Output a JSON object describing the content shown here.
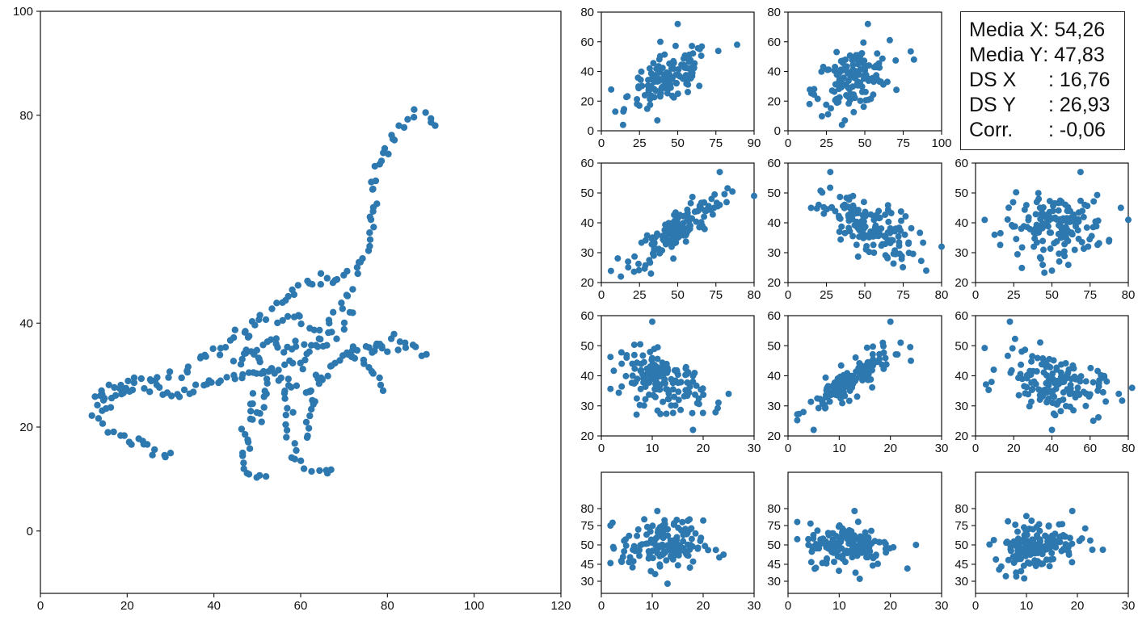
{
  "chart_data": [
    {
      "id": "dino",
      "type": "scatter",
      "title": "",
      "xlabel": "",
      "ylabel": "",
      "xlim": [
        0,
        120
      ],
      "ylim": [
        -12,
        100
      ],
      "xticks": [
        0,
        20,
        40,
        60,
        80,
        100,
        120
      ],
      "yticks": [
        0,
        20,
        40,
        80,
        100
      ],
      "ytick_positions": [
        0,
        20,
        40,
        80,
        100
      ],
      "marker_color": "#2e78b0",
      "outline": [
        [
          [
            14,
            25.5
          ],
          [
            16,
            24
          ],
          [
            13,
            22.5
          ],
          [
            15,
            20.5
          ],
          [
            17,
            19
          ],
          [
            20,
            17.5
          ],
          [
            23,
            16.8
          ],
          [
            27,
            15.8
          ],
          [
            30,
            15
          ]
        ],
        [
          [
            13,
            26
          ],
          [
            16,
            27
          ],
          [
            20,
            28.5
          ],
          [
            25,
            29
          ],
          [
            28,
            29.6
          ],
          [
            33,
            30
          ],
          [
            36,
            32.5
          ],
          [
            40,
            34.5
          ],
          [
            44,
            36.5
          ],
          [
            48,
            39.5
          ],
          [
            52,
            41.5
          ],
          [
            55,
            44
          ],
          [
            58,
            45.5
          ],
          [
            61,
            47.5
          ],
          [
            64,
            48
          ],
          [
            67,
            48.5
          ],
          [
            70,
            48.5
          ],
          [
            73,
            50.5
          ],
          [
            75,
            54
          ],
          [
            76,
            58
          ],
          [
            77,
            62
          ],
          [
            77,
            66
          ],
          [
            78,
            70
          ],
          [
            80,
            74
          ],
          [
            82,
            77
          ],
          [
            85,
            79
          ],
          [
            87,
            80.5
          ],
          [
            89,
            79.5
          ],
          [
            91,
            78
          ]
        ],
        [
          [
            14,
            25
          ],
          [
            18,
            26.5
          ],
          [
            22,
            27
          ],
          [
            26,
            27.3
          ],
          [
            30,
            26.5
          ],
          [
            34,
            27
          ],
          [
            38,
            28
          ],
          [
            42,
            29.5
          ],
          [
            46,
            30
          ],
          [
            50,
            30.5
          ],
          [
            54,
            30
          ],
          [
            58,
            28.5
          ],
          [
            62,
            27
          ],
          [
            65,
            29
          ],
          [
            67,
            32
          ],
          [
            70,
            34
          ],
          [
            73,
            34.5
          ],
          [
            76,
            35.5
          ],
          [
            78,
            36
          ],
          [
            80,
            34.5
          ]
        ],
        [
          [
            48,
            39
          ],
          [
            48,
            36
          ],
          [
            50,
            33
          ],
          [
            53,
            31
          ],
          [
            57,
            31.5
          ],
          [
            61,
            33
          ],
          [
            64,
            36
          ],
          [
            66,
            39
          ],
          [
            68,
            42
          ],
          [
            70,
            45
          ],
          [
            72,
            46.5
          ]
        ],
        [
          [
            49,
            26
          ],
          [
            48,
            22
          ],
          [
            47,
            18
          ],
          [
            46.5,
            14
          ],
          [
            47,
            11.5
          ],
          [
            48.5,
            10.5
          ],
          [
            50,
            10.8
          ],
          [
            52,
            10.5
          ]
        ],
        [
          [
            56,
            27
          ],
          [
            57,
            23
          ],
          [
            57.5,
            18.5
          ],
          [
            59,
            15
          ],
          [
            60,
            13
          ],
          [
            62.5,
            12
          ],
          [
            65,
            11.5
          ],
          [
            67,
            11.8
          ]
        ],
        [
          [
            53,
            29.5
          ],
          [
            52,
            26
          ],
          [
            51,
            23
          ],
          [
            51,
            21
          ]
        ],
        [
          [
            64,
            30
          ],
          [
            63,
            26
          ],
          [
            62,
            22
          ],
          [
            61.5,
            18
          ]
        ],
        [
          [
            70,
            34
          ],
          [
            73,
            33
          ],
          [
            76,
            32
          ],
          [
            78,
            29
          ],
          [
            79,
            27
          ]
        ],
        [
          [
            76,
            35.5
          ],
          [
            80,
            37
          ],
          [
            83,
            36
          ],
          [
            86,
            35
          ],
          [
            89,
            34
          ]
        ],
        [
          [
            54,
            38
          ],
          [
            56,
            40
          ],
          [
            58,
            42
          ],
          [
            60,
            41
          ],
          [
            62,
            39
          ],
          [
            64,
            37
          ],
          [
            66,
            36
          ],
          [
            68,
            38
          ],
          [
            70,
            40
          ],
          [
            72,
            42
          ]
        ],
        [
          [
            44,
            33
          ],
          [
            46,
            34
          ],
          [
            48,
            33.5
          ],
          [
            50,
            35
          ],
          [
            52,
            36
          ],
          [
            54,
            35.5
          ],
          [
            56,
            34
          ],
          [
            58,
            35
          ],
          [
            60,
            36.5
          ],
          [
            62,
            34.5
          ]
        ]
      ]
    },
    {
      "id": "r1c1",
      "type": "scatter",
      "xlim": [
        0,
        90
      ],
      "ylim": [
        0,
        80
      ],
      "xticks": [
        0,
        25,
        50,
        75,
        90
      ],
      "yticks": [
        0,
        20,
        40,
        60,
        80
      ],
      "center": [
        40,
        35
      ],
      "spread": [
        12,
        10
      ],
      "corr": 0.55,
      "n": 140,
      "outliers": [
        [
          45,
          72
        ],
        [
          80,
          58
        ],
        [
          13,
          13
        ],
        [
          33,
          7
        ]
      ]
    },
    {
      "id": "r1c2",
      "type": "scatter",
      "xlim": [
        0,
        100
      ],
      "ylim": [
        0,
        80
      ],
      "xticks": [
        0,
        25,
        50,
        75,
        100
      ],
      "yticks": [
        0,
        20,
        40,
        60,
        80
      ],
      "center": [
        42,
        35
      ],
      "spread": [
        12,
        10
      ],
      "corr": 0.35,
      "n": 140,
      "outliers": [
        [
          52,
          72
        ],
        [
          82,
          48
        ],
        [
          14,
          18
        ],
        [
          37,
          7
        ]
      ]
    },
    {
      "id": "r2c1",
      "type": "scatter",
      "xlim": [
        0,
        80
      ],
      "ylim": [
        20,
        60
      ],
      "xticks": [
        0,
        25,
        50,
        75,
        80
      ],
      "yticks": [
        20,
        30,
        40,
        50,
        60
      ],
      "center": [
        40,
        38
      ],
      "spread": [
        12,
        6
      ],
      "corr": 0.85,
      "n": 150,
      "outliers": [
        [
          62,
          57
        ],
        [
          80,
          49
        ],
        [
          14,
          27
        ],
        [
          26,
          23
        ]
      ]
    },
    {
      "id": "r2c2",
      "type": "scatter",
      "xlim": [
        0,
        80
      ],
      "ylim": [
        20,
        60
      ],
      "xticks": [
        0,
        25,
        50,
        75,
        80
      ],
      "yticks": [
        20,
        30,
        40,
        50,
        60
      ],
      "center": [
        42,
        38
      ],
      "spread": [
        12,
        5.5
      ],
      "corr": -0.5,
      "n": 150,
      "outliers": [
        [
          22,
          57
        ],
        [
          72,
          24
        ],
        [
          80,
          32
        ],
        [
          12,
          45
        ]
      ]
    },
    {
      "id": "r2c3",
      "type": "scatter",
      "xlim": [
        0,
        80
      ],
      "ylim": [
        20,
        60
      ],
      "xticks": [
        0,
        25,
        50,
        75,
        80
      ],
      "yticks": [
        20,
        30,
        40,
        50,
        60
      ],
      "center": [
        42,
        39
      ],
      "spread": [
        13,
        5
      ],
      "corr": 0.0,
      "n": 150,
      "outliers": [
        [
          55,
          57
        ],
        [
          40,
          24
        ],
        [
          80,
          41
        ],
        [
          10,
          36
        ]
      ]
    },
    {
      "id": "r3c1",
      "type": "scatter",
      "xlim": [
        0,
        30
      ],
      "ylim": [
        20,
        60
      ],
      "xticks": [
        0,
        10,
        20,
        30
      ],
      "yticks": [
        20,
        30,
        40,
        50,
        60
      ],
      "center": [
        12,
        38
      ],
      "spread": [
        4,
        5
      ],
      "corr": -0.4,
      "n": 150,
      "outliers": [
        [
          10,
          58
        ],
        [
          18,
          22
        ],
        [
          25,
          34
        ],
        [
          4,
          44
        ]
      ]
    },
    {
      "id": "r3c2",
      "type": "scatter",
      "xlim": [
        0,
        30
      ],
      "ylim": [
        20,
        60
      ],
      "xticks": [
        0,
        10,
        20,
        30
      ],
      "yticks": [
        20,
        30,
        40,
        50,
        60
      ],
      "center": [
        12,
        38
      ],
      "spread": [
        4,
        5
      ],
      "corr": 0.85,
      "n": 150,
      "outliers": [
        [
          20,
          58
        ],
        [
          24,
          45
        ],
        [
          5,
          22
        ],
        [
          22,
          51
        ]
      ]
    },
    {
      "id": "r3c3",
      "type": "scatter",
      "xlim": [
        0,
        80
      ],
      "ylim": [
        20,
        60
      ],
      "xticks": [
        0,
        20,
        40,
        60,
        80
      ],
      "yticks": [
        20,
        30,
        40,
        50,
        60
      ],
      "center": [
        40,
        38
      ],
      "spread": [
        13,
        5
      ],
      "corr": -0.35,
      "n": 150,
      "outliers": [
        [
          18,
          58
        ],
        [
          40,
          22
        ],
        [
          82,
          36
        ],
        [
          75,
          34
        ]
      ]
    },
    {
      "id": "r4c1",
      "type": "scatter",
      "xlim": [
        0,
        30
      ],
      "ylim": [
        30,
        80
      ],
      "xticks": [
        0,
        10,
        20,
        30
      ],
      "yticks": [
        30,
        45,
        50,
        75,
        80
      ],
      "ytick_positions": [
        35,
        42,
        50,
        58,
        65
      ],
      "center": [
        12,
        50
      ],
      "spread": [
        4,
        5
      ],
      "corr": 0.0,
      "n": 150,
      "outliers": [
        [
          11,
          64
        ],
        [
          17,
          60
        ],
        [
          13,
          34
        ],
        [
          24,
          46
        ],
        [
          4,
          43
        ]
      ]
    },
    {
      "id": "r4c2",
      "type": "scatter",
      "xlim": [
        0,
        30
      ],
      "ylim": [
        30,
        80
      ],
      "xticks": [
        0,
        10,
        20,
        30
      ],
      "yticks": [
        30,
        45,
        50,
        75,
        80
      ],
      "ytick_positions": [
        35,
        42,
        50,
        58,
        65
      ],
      "center": [
        12,
        50
      ],
      "spread": [
        4,
        4.5
      ],
      "corr": 0.0,
      "n": 150,
      "outliers": [
        [
          13,
          64
        ],
        [
          14,
          36
        ],
        [
          25,
          50
        ],
        [
          4,
          50
        ],
        [
          9,
          43
        ]
      ]
    },
    {
      "id": "r4c3",
      "type": "scatter",
      "xlim": [
        0,
        30
      ],
      "ylim": [
        30,
        80
      ],
      "xticks": [
        0,
        10,
        20,
        30
      ],
      "yticks": [
        30,
        45,
        50,
        75,
        80
      ],
      "ytick_positions": [
        35,
        42,
        50,
        58,
        65
      ],
      "center": [
        12,
        50
      ],
      "spread": [
        4,
        5
      ],
      "corr": 0.15,
      "n": 150,
      "outliers": [
        [
          19,
          64
        ],
        [
          8,
          37
        ],
        [
          25,
          48
        ],
        [
          4,
          44
        ],
        [
          11,
          60
        ]
      ]
    }
  ],
  "stats": {
    "lines": [
      {
        "label": "Media X",
        "value": ": 54,26"
      },
      {
        "label": "Media Y",
        "value": ": 47,83"
      },
      {
        "label": "DS X",
        "value": ": 16,76"
      },
      {
        "label": "DS Y",
        "value": ": 26,93"
      },
      {
        "label": "Corr.",
        "value": ": -0,06"
      }
    ]
  }
}
